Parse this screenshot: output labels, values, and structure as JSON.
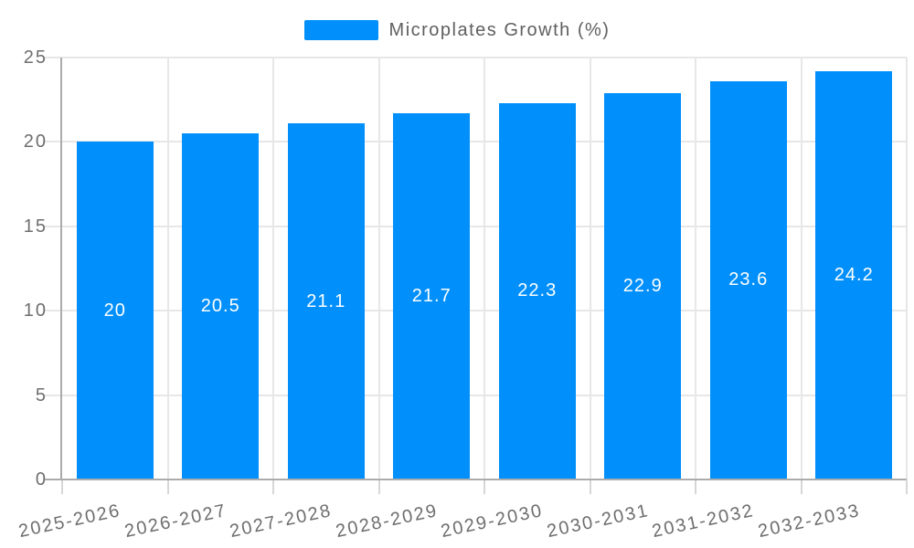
{
  "chart_data": {
    "type": "bar",
    "title": "",
    "xlabel": "",
    "ylabel": "",
    "legend": {
      "label": "Microplates Growth (%)",
      "position": "top"
    },
    "categories": [
      "2025-2026",
      "2026-2027",
      "2027-2028",
      "2028-2029",
      "2029-2030",
      "2030-2031",
      "2031-2032",
      "2032-2033"
    ],
    "series": [
      {
        "name": "Microplates Growth (%)",
        "values": [
          20,
          20.5,
          21.1,
          21.7,
          22.3,
          22.9,
          23.6,
          24.2
        ],
        "labels": [
          "20",
          "20.5",
          "21.1",
          "21.7",
          "22.3",
          "22.9",
          "23.6",
          "24.2"
        ]
      }
    ],
    "ylim": [
      0,
      25
    ],
    "yticks": [
      0,
      5,
      10,
      15,
      20,
      25
    ],
    "grid": true,
    "colors": {
      "bar": "#008ffb",
      "grid_line": "#e7e7e7",
      "axis_line": "#ababab",
      "tick": "#d6d6d6",
      "axis_text": "#6e6e6e",
      "legend_text": "#5f5f5f",
      "value_label": "#ffffff",
      "background": "#ffffff"
    }
  }
}
